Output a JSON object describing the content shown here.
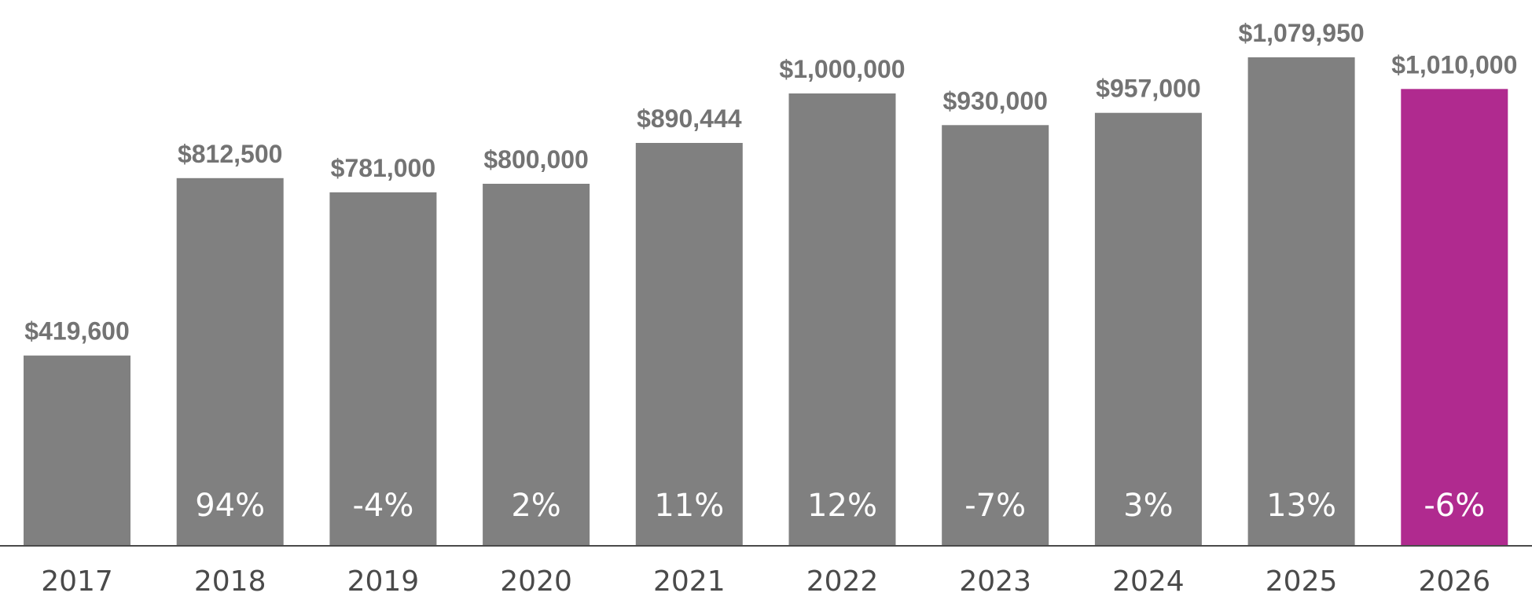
{
  "chart_data": {
    "type": "bar",
    "title": "",
    "xlabel": "",
    "ylabel": "",
    "ylim": [
      0,
      1100000
    ],
    "grid": false,
    "categories": [
      "2017",
      "2018",
      "2019",
      "2020",
      "2021",
      "2022",
      "2023",
      "2024",
      "2025",
      "2026"
    ],
    "values": [
      419600,
      812500,
      781000,
      800000,
      890444,
      1000000,
      930000,
      957000,
      1079950,
      1010000
    ],
    "value_labels": [
      "$419,600",
      "$812,500",
      "$781,000",
      "$800,000",
      "$890,444",
      "$1,000,000",
      "$930,000",
      "$957,000",
      "$1,079,950",
      "$1,010,000"
    ],
    "change_labels": [
      "",
      "94%",
      "-4%",
      "2%",
      "11%",
      "12%",
      "-7%",
      "3%",
      "13%",
      "-6%"
    ],
    "highlight_index": 9,
    "colors": {
      "bar": "#808080",
      "highlight": "#b02a8f",
      "value_label": "#737373",
      "change_label": "#ffffff",
      "year_label": "#4a4a4a",
      "baseline": "#4a4a4a"
    }
  }
}
